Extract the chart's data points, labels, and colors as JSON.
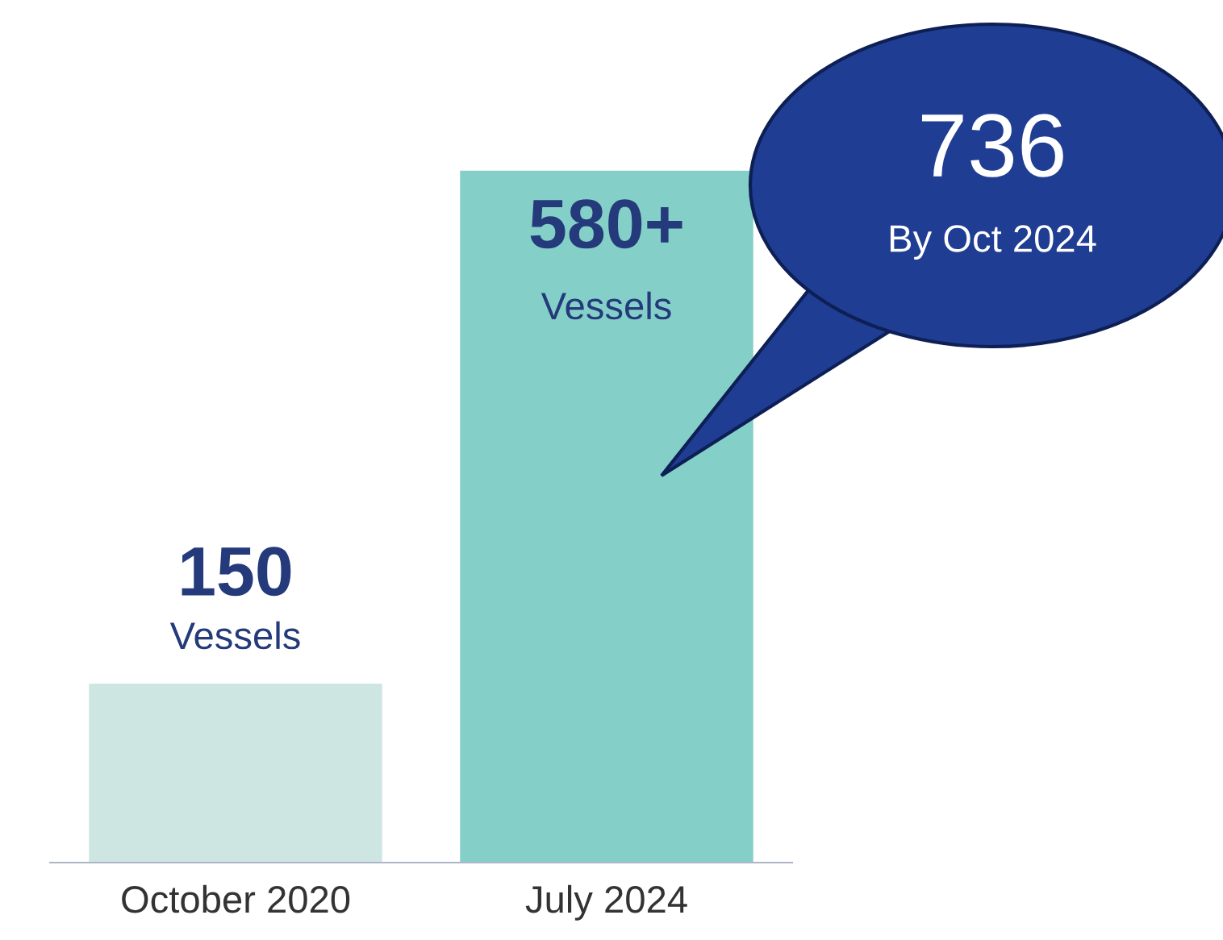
{
  "chart_data": {
    "type": "bar",
    "categories": [
      "October 2020",
      "July 2024"
    ],
    "values": [
      150,
      580
    ],
    "colors": [
      "#cde6e2",
      "#84d0c8"
    ],
    "value_labels": [
      "150\nVessels",
      "580+\nVessels"
    ],
    "annotations": [
      "736\nBy Oct 2024"
    ],
    "grid": false,
    "legend": false
  }
}
